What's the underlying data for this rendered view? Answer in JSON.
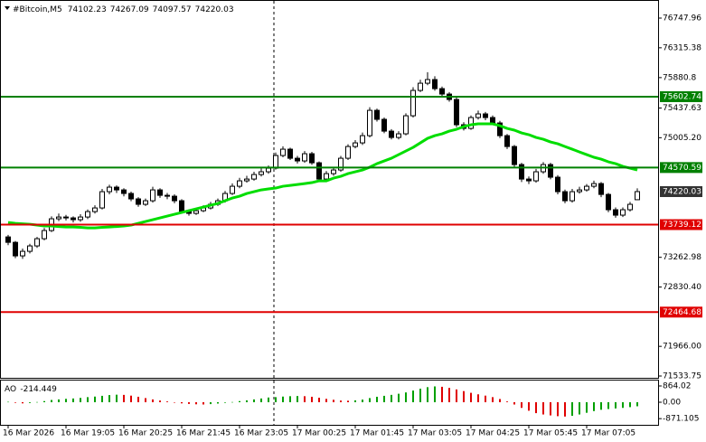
{
  "chart_data": {
    "type": "candlestick",
    "title": "#Bitcoin,M5",
    "categories": [
      "16 Mar 2026",
      null,
      null,
      null,
      null,
      null,
      null,
      null,
      "16 Mar 19:05",
      null,
      null,
      null,
      null,
      null,
      null,
      null,
      "16 Mar 20:25",
      null,
      null,
      null,
      null,
      null,
      null,
      null,
      "16 Mar 21:45",
      null,
      null,
      null,
      null,
      null,
      null,
      null,
      "16 Mar 23:05",
      null,
      null,
      null,
      null,
      null,
      null,
      null,
      "17 Mar 00:25",
      null,
      null,
      null,
      null,
      null,
      null,
      null,
      "17 Mar 01:45",
      null,
      null,
      null,
      null,
      null,
      null,
      null,
      "17 Mar 03:05",
      null,
      null,
      null,
      null,
      null,
      null,
      null,
      "17 Mar 04:25",
      null,
      null,
      null,
      null,
      null,
      null,
      null,
      "17 Mar 05:45",
      null,
      null,
      null,
      null,
      null,
      null,
      null,
      "17 Mar 07:05",
      null,
      null,
      null,
      null,
      null,
      null,
      null
    ],
    "candles": [
      [
        73560,
        73590,
        73440,
        73481
      ],
      [
        73481,
        73500,
        73250,
        73284
      ],
      [
        73284,
        73390,
        73240,
        73350
      ],
      [
        73350,
        73460,
        73320,
        73429
      ],
      [
        73429,
        73560,
        73400,
        73534
      ],
      [
        73534,
        73690,
        73510,
        73653
      ],
      [
        73653,
        73860,
        73630,
        73824
      ],
      [
        73824,
        73900,
        73790,
        73850
      ],
      [
        73850,
        73880,
        73800,
        73837
      ],
      [
        73837,
        73860,
        73770,
        73811
      ],
      [
        73811,
        73890,
        73780,
        73850
      ],
      [
        73850,
        73960,
        73820,
        73929
      ],
      [
        73929,
        74020,
        73900,
        73982
      ],
      [
        73982,
        74260,
        73960,
        74219
      ],
      [
        74219,
        74320,
        74180,
        74285
      ],
      [
        74285,
        74310,
        74200,
        74245
      ],
      [
        74245,
        74270,
        74150,
        74193
      ],
      [
        74193,
        74220,
        74080,
        74114
      ],
      [
        74114,
        74140,
        74000,
        74035
      ],
      [
        74035,
        74120,
        74010,
        74087
      ],
      [
        74087,
        74290,
        74060,
        74245
      ],
      [
        74245,
        74270,
        74130,
        74166
      ],
      [
        74166,
        74200,
        74110,
        74153
      ],
      [
        74153,
        74180,
        74050,
        74087
      ],
      [
        74087,
        74110,
        73900,
        73929
      ],
      [
        73929,
        73960,
        73870,
        73903
      ],
      [
        73903,
        73980,
        73880,
        73942
      ],
      [
        73942,
        74020,
        73920,
        73982
      ],
      [
        73982,
        74070,
        73960,
        74035
      ],
      [
        74035,
        74120,
        74010,
        74087
      ],
      [
        74087,
        74230,
        74060,
        74193
      ],
      [
        74193,
        74340,
        74170,
        74298
      ],
      [
        74298,
        74420,
        74270,
        74377
      ],
      [
        74377,
        74450,
        74350,
        74403
      ],
      [
        74403,
        74510,
        74380,
        74469
      ],
      [
        74469,
        74560,
        74440,
        74509
      ],
      [
        74509,
        74600,
        74480,
        74561
      ],
      [
        74561,
        74790,
        74540,
        74746
      ],
      [
        74746,
        74880,
        74720,
        74838
      ],
      [
        74838,
        74860,
        74680,
        74706
      ],
      [
        74706,
        74740,
        74630,
        74667
      ],
      [
        74667,
        74810,
        74640,
        74772
      ],
      [
        74772,
        74800,
        74610,
        74640
      ],
      [
        74640,
        74660,
        74370,
        74403
      ],
      [
        74403,
        74520,
        74380,
        74482
      ],
      [
        74482,
        74570,
        74450,
        74535
      ],
      [
        74535,
        74740,
        74510,
        74706
      ],
      [
        74706,
        74910,
        74680,
        74877
      ],
      [
        74877,
        74970,
        74850,
        74930
      ],
      [
        74930,
        75080,
        74900,
        75035
      ],
      [
        75035,
        75450,
        75010,
        75404
      ],
      [
        75404,
        75430,
        75240,
        75273
      ],
      [
        75273,
        75300,
        75070,
        75101
      ],
      [
        75101,
        75130,
        74980,
        75009
      ],
      [
        75009,
        75100,
        74980,
        75062
      ],
      [
        75062,
        75360,
        75040,
        75325
      ],
      [
        75325,
        75740,
        75300,
        75694
      ],
      [
        75694,
        75850,
        75670,
        75799
      ],
      [
        75799,
        75960,
        75770,
        75852
      ],
      [
        75852,
        75900,
        75690,
        75720
      ],
      [
        75720,
        75750,
        75610,
        75641
      ],
      [
        75641,
        75670,
        75530,
        75562
      ],
      [
        75562,
        75590,
        75160,
        75194
      ],
      [
        75194,
        75230,
        75110,
        75141
      ],
      [
        75141,
        75330,
        75120,
        75299
      ],
      [
        75299,
        75400,
        75270,
        75352
      ],
      [
        75352,
        75380,
        75260,
        75299
      ],
      [
        75299,
        75330,
        75190,
        75220
      ],
      [
        75220,
        75250,
        75000,
        75035
      ],
      [
        75035,
        75060,
        74840,
        74877
      ],
      [
        74877,
        74900,
        74580,
        74614
      ],
      [
        74614,
        74640,
        74360,
        74403
      ],
      [
        74403,
        74440,
        74330,
        74377
      ],
      [
        74377,
        74550,
        74350,
        74509
      ],
      [
        74509,
        74650,
        74480,
        74614
      ],
      [
        74614,
        74640,
        74400,
        74430
      ],
      [
        74430,
        74460,
        74180,
        74219
      ],
      [
        74219,
        74250,
        74050,
        74087
      ],
      [
        74087,
        74260,
        74060,
        74219
      ],
      [
        74219,
        74290,
        74190,
        74245
      ],
      [
        74245,
        74330,
        74220,
        74298
      ],
      [
        74298,
        74380,
        74270,
        74337
      ],
      [
        74337,
        74360,
        74140,
        74179
      ],
      [
        74179,
        74200,
        73920,
        73956
      ],
      [
        73956,
        73990,
        73840,
        73877
      ],
      [
        73877,
        73990,
        73850,
        73956
      ],
      [
        73956,
        74070,
        73930,
        74035
      ],
      [
        74102.23,
        74267.09,
        74097.57,
        74220.03
      ]
    ],
    "candle_color": "#000000",
    "ylim": [
      71507.4,
      77011.3
    ],
    "yticks": [
      76747.96,
      76315.38,
      75880.8,
      75437.63,
      {
        "value": 75005.2,
        "label": "75005.20"
      },
      73262.98,
      {
        "value": 72830.4,
        "label": "72830.40"
      },
      {
        "value": 71966,
        "label": "71966.00"
      },
      71533.75
    ],
    "levels": [
      {
        "value": 75602.74,
        "color": "#008000"
      },
      {
        "value": 74570.59,
        "color": "#008000"
      },
      {
        "value": 73739.12,
        "color": "#e00000"
      },
      {
        "value": 72464.68,
        "color": "#e00000"
      }
    ],
    "ma": {
      "color": "#00dd00",
      "values": [
        73771,
        73758,
        73751,
        73745,
        73732,
        73719,
        73719,
        73712,
        73705,
        73705,
        73699,
        73692,
        73692,
        73699,
        73705,
        73712,
        73719,
        73732,
        73758,
        73784,
        73811,
        73837,
        73863,
        73890,
        73916,
        73942,
        73969,
        73995,
        74021,
        74048,
        74087,
        74127,
        74153,
        74193,
        74219,
        74245,
        74259,
        74272,
        74298,
        74311,
        74324,
        74337,
        74351,
        74377,
        74377,
        74416,
        74443,
        74482,
        74509,
        74535,
        74575,
        74627,
        74667,
        74706,
        74759,
        74812,
        74864,
        74930,
        74996,
        75035,
        75062,
        75101,
        75128,
        75167,
        75194,
        75207,
        75207,
        75207,
        75180,
        75141,
        75115,
        75075,
        75049,
        75009,
        74983,
        74943,
        74917,
        74877,
        74838,
        74798,
        74759,
        74720,
        74693,
        74654,
        74627,
        74588,
        74561,
        74535
      ]
    },
    "ao": {
      "name": "AO",
      "up_color": "#00a000",
      "down_color": "#e00000",
      "ylim": [
        -1200,
        1200
      ],
      "yticks": [
        864.02,
        {
          "value": 0,
          "label": "0.00"
        },
        -871.105
      ],
      "values": [
        20,
        -30,
        -60,
        -40,
        10,
        60,
        120,
        150,
        180,
        200,
        230,
        270,
        300,
        340,
        380,
        400,
        390,
        350,
        290,
        220,
        150,
        90,
        40,
        -20,
        -60,
        -90,
        -110,
        -120,
        -100,
        -70,
        -30,
        10,
        60,
        100,
        150,
        200,
        250,
        270,
        300,
        320,
        330,
        320,
        290,
        240,
        180,
        130,
        90,
        80,
        100,
        140,
        220,
        290,
        340,
        390,
        450,
        520,
        620,
        720,
        800,
        840,
        820,
        760,
        680,
        590,
        500,
        420,
        350,
        270,
        170,
        40,
        -120,
        -300,
        -450,
        -580,
        -650,
        -700,
        -740,
        -760,
        -720,
        -650,
        -560,
        -470,
        -400,
        -360,
        -330,
        -300,
        -260,
        -214.449
      ]
    }
  }
}
